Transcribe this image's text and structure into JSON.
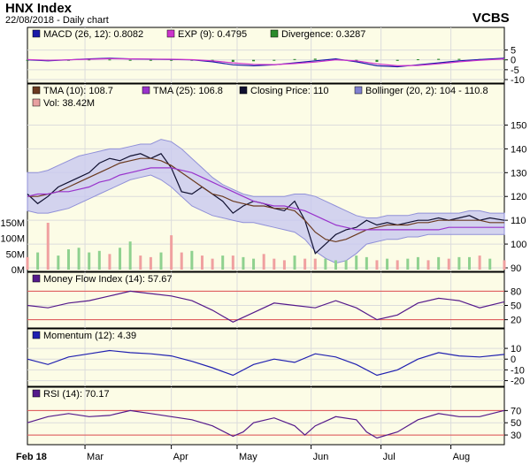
{
  "header": {
    "title": "HNX Index",
    "subtitle": "22/08/2018 - Daily chart",
    "symbol": "VCBS"
  },
  "chart_data": [
    {
      "type": "line",
      "panel": "macd",
      "legend": [
        {
          "label": "MACD (26, 12): 0.8082",
          "color": "#1a1aa8"
        },
        {
          "label": "EXP (9): 0.4795",
          "color": "#cc33cc"
        },
        {
          "label": "Divergence: 0.3287",
          "color": "#2a8a2a"
        }
      ],
      "y_ticks": [
        "5",
        "0",
        "-5",
        "-10"
      ],
      "ylim": [
        -10,
        7.5
      ],
      "x": [
        0,
        10,
        20,
        30,
        40,
        50,
        60,
        70,
        80,
        90,
        100,
        110,
        120,
        130,
        140,
        150,
        160,
        170,
        180,
        190,
        200,
        210,
        220,
        232
      ],
      "series": [
        {
          "name": "MACD",
          "values": [
            0,
            -0.5,
            0,
            0.5,
            0.8,
            0.5,
            0.3,
            0.2,
            0,
            -1,
            -2.5,
            -3,
            -2.5,
            -1.5,
            -0.5,
            0.5,
            -1,
            -3,
            -3.5,
            -2.5,
            -1.5,
            -0.5,
            0.2,
            0.8
          ]
        },
        {
          "name": "EXP",
          "values": [
            0.2,
            -0.2,
            0,
            0.3,
            0.6,
            0.5,
            0.4,
            0.3,
            0.1,
            -0.5,
            -1.5,
            -2.3,
            -2.4,
            -1.9,
            -1.1,
            0,
            -0.5,
            -2,
            -3,
            -2.8,
            -2,
            -1,
            -0.2,
            0.5
          ]
        }
      ]
    },
    {
      "type": "line",
      "panel": "price",
      "legend": [
        {
          "label": "TMA (10): 108.7",
          "color": "#6b3a1f"
        },
        {
          "label": "TMA (25): 106.8",
          "color": "#9933cc"
        },
        {
          "label": "Closing Price: 110",
          "color": "#101030"
        },
        {
          "label": "Bollinger (20, 2): 104 - 110.8",
          "color": "#8080d0"
        },
        {
          "label": "Vol: 38.42M",
          "color": "#e8a0a0"
        }
      ],
      "y_ticks": [
        "150",
        "140",
        "130",
        "120",
        "110",
        "100",
        "90"
      ],
      "ylim": [
        90,
        155
      ],
      "vol_ticks": [
        "150M",
        "100M",
        "50M",
        "0M"
      ],
      "vol_lim": [
        0,
        150
      ],
      "x": [
        0,
        5,
        10,
        15,
        20,
        25,
        30,
        35,
        40,
        45,
        50,
        55,
        60,
        65,
        70,
        75,
        80,
        85,
        90,
        95,
        100,
        105,
        110,
        115,
        120,
        125,
        130,
        135,
        140,
        145,
        150,
        155,
        160,
        165,
        170,
        175,
        180,
        185,
        190,
        195,
        200,
        205,
        210,
        215,
        220,
        225,
        232
      ],
      "series": [
        {
          "name": "Closing Price",
          "values": [
            121,
            117,
            120,
            124,
            126,
            128,
            130,
            134,
            136,
            135,
            137,
            138,
            136,
            138,
            132,
            122,
            121,
            124,
            121,
            118,
            113,
            116,
            118,
            117,
            115,
            114,
            118,
            110,
            96,
            100,
            104,
            106,
            107,
            110,
            108,
            109,
            108,
            109,
            110,
            110,
            111,
            110,
            111,
            112,
            110,
            111,
            110
          ]
        },
        {
          "name": "TMA (10)",
          "values": [
            120,
            120,
            121,
            122,
            124,
            126,
            128,
            130,
            132,
            134,
            135,
            136,
            136,
            135,
            133,
            130,
            127,
            124,
            121,
            120,
            118,
            117,
            116,
            116,
            115,
            115,
            114,
            110,
            105,
            102,
            101,
            102,
            104,
            106,
            107,
            108,
            108,
            108,
            109,
            109,
            110,
            110,
            110,
            110,
            110,
            109,
            109
          ]
        },
        {
          "name": "TMA (25)",
          "values": [
            120,
            121,
            121,
            122,
            122,
            123,
            124,
            126,
            127,
            129,
            130,
            131,
            132,
            132,
            132,
            131,
            130,
            128,
            126,
            124,
            122,
            120,
            118,
            117,
            116,
            116,
            115,
            114,
            112,
            110,
            108,
            107,
            106,
            106,
            106,
            106,
            106,
            106,
            106,
            106,
            106,
            107,
            107,
            107,
            107,
            107,
            107
          ]
        },
        {
          "name": "Bollinger Upper",
          "values": [
            130,
            130,
            131,
            133,
            135,
            137,
            138,
            139,
            140,
            140,
            141,
            142,
            142,
            144,
            143,
            140,
            136,
            132,
            128,
            125,
            123,
            121,
            120,
            120,
            120,
            120,
            121,
            121,
            120,
            118,
            116,
            114,
            112,
            111,
            111,
            112,
            112,
            112,
            113,
            113,
            113,
            113,
            113,
            114,
            114,
            113,
            113
          ]
        },
        {
          "name": "Bollinger Lower",
          "values": [
            114,
            113,
            113,
            114,
            115,
            117,
            119,
            121,
            123,
            125,
            127,
            128,
            129,
            127,
            124,
            120,
            116,
            114,
            112,
            111,
            110,
            109,
            109,
            108,
            107,
            106,
            105,
            102,
            97,
            94,
            92,
            93,
            96,
            100,
            101,
            102,
            102,
            103,
            103,
            104,
            104,
            104,
            104,
            104,
            104,
            104,
            104
          ]
        }
      ],
      "volume": [
        40,
        55,
        150,
        45,
        65,
        70,
        55,
        60,
        50,
        70,
        90,
        45,
        40,
        55,
        110,
        55,
        60,
        45,
        35,
        45,
        45,
        40,
        35,
        50,
        35,
        30,
        45,
        35,
        35,
        35,
        30,
        30,
        45,
        40,
        30,
        35,
        30,
        35,
        40,
        30,
        40,
        35,
        40,
        40,
        45,
        35,
        30
      ],
      "volume_up": [
        false,
        true,
        false,
        true,
        true,
        true,
        true,
        true,
        false,
        true,
        true,
        false,
        false,
        true,
        false,
        false,
        true,
        false,
        false,
        true,
        false,
        true,
        true,
        false,
        false,
        false,
        true,
        false,
        false,
        true,
        true,
        true,
        true,
        true,
        false,
        true,
        false,
        true,
        true,
        false,
        true,
        false,
        true,
        true,
        false,
        true,
        false
      ]
    },
    {
      "type": "line",
      "panel": "mfi",
      "legend": [
        {
          "label": "Money Flow Index (14): 57.67",
          "color": "#551a8b"
        }
      ],
      "y_ticks": [
        "80",
        "50",
        "20"
      ],
      "ylim": [
        10,
        90
      ],
      "reference_lines": [
        80,
        20
      ],
      "x": [
        0,
        10,
        20,
        30,
        40,
        50,
        60,
        70,
        80,
        90,
        100,
        110,
        120,
        130,
        140,
        150,
        160,
        170,
        180,
        190,
        200,
        210,
        220,
        232
      ],
      "series": [
        {
          "name": "Money Flow Index",
          "values": [
            50,
            45,
            55,
            60,
            70,
            80,
            75,
            70,
            60,
            40,
            15,
            35,
            55,
            50,
            45,
            60,
            45,
            20,
            30,
            55,
            65,
            60,
            45,
            57.67
          ]
        }
      ]
    },
    {
      "type": "line",
      "panel": "momentum",
      "legend": [
        {
          "label": "Momentum (12): 4.39",
          "color": "#2020b0"
        }
      ],
      "y_ticks": [
        "10",
        "0",
        "-10",
        "-20"
      ],
      "ylim": [
        -22,
        15
      ],
      "x": [
        0,
        10,
        20,
        30,
        40,
        50,
        60,
        70,
        80,
        90,
        100,
        110,
        120,
        130,
        140,
        150,
        160,
        170,
        180,
        190,
        200,
        210,
        220,
        232
      ],
      "series": [
        {
          "name": "Momentum",
          "values": [
            0,
            -5,
            2,
            5,
            8,
            6,
            5,
            3,
            -2,
            -8,
            -15,
            -5,
            0,
            -3,
            5,
            2,
            -5,
            -15,
            -10,
            0,
            6,
            3,
            2,
            4.39
          ]
        }
      ]
    },
    {
      "type": "line",
      "panel": "rsi",
      "legend": [
        {
          "label": "RSI (14): 70.17",
          "color": "#551a8b"
        }
      ],
      "y_ticks": [
        "70",
        "50",
        "30"
      ],
      "ylim": [
        20,
        85
      ],
      "reference_lines": [
        70,
        30
      ],
      "x": [
        0,
        10,
        20,
        30,
        40,
        50,
        60,
        70,
        80,
        90,
        100,
        105,
        110,
        120,
        130,
        135,
        140,
        150,
        160,
        165,
        170,
        180,
        190,
        200,
        210,
        220,
        232
      ],
      "series": [
        {
          "name": "RSI",
          "values": [
            50,
            60,
            65,
            60,
            62,
            70,
            65,
            60,
            55,
            45,
            28,
            35,
            50,
            58,
            45,
            30,
            45,
            60,
            55,
            35,
            25,
            35,
            55,
            65,
            60,
            60,
            70.17
          ]
        }
      ]
    }
  ],
  "x_axis": {
    "labels": [
      "Feb 18",
      "Mar",
      "Apr",
      "May",
      "Jun",
      "Jul",
      "Aug"
    ],
    "label_x": [
      -4,
      28,
      70,
      102,
      138,
      172,
      206
    ]
  }
}
